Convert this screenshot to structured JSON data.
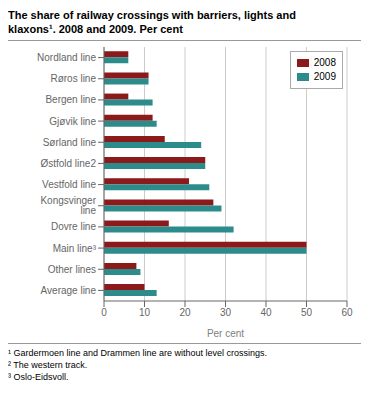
{
  "chart_data": {
    "type": "bar",
    "orientation": "horizontal",
    "title": "The share of railway crossings with barriers, lights and\nklaxons¹. 2008 and 2009. Per cent",
    "categories": [
      "Nordland line",
      "Røros line",
      "Bergen line",
      "Gjøvik line",
      "Sørland line",
      "Østfold line2",
      "Vestfold line",
      "Kongsvinger line",
      "Dovre line",
      "Main line³",
      "Other lines",
      "Average line"
    ],
    "series": [
      {
        "name": "2008",
        "color": "#8b1a1a",
        "values": [
          6,
          11,
          6,
          12,
          15,
          25,
          21,
          27,
          16,
          50,
          8,
          10
        ]
      },
      {
        "name": "2009",
        "color": "#2e8b8b",
        "values": [
          6,
          11,
          12,
          13,
          24,
          25,
          26,
          29,
          32,
          50,
          9,
          13
        ]
      }
    ],
    "xlabel": "Per cent",
    "xlim": [
      0,
      60
    ],
    "xticks": [
      0,
      10,
      20,
      30,
      40,
      50,
      60
    ],
    "grid": true,
    "legend": "upper right",
    "annotations": [
      "¹ Gardermoen line and Drammen line are without level crossings.",
      "² The western track.",
      "³ Oslo-Eidsvoll."
    ]
  }
}
